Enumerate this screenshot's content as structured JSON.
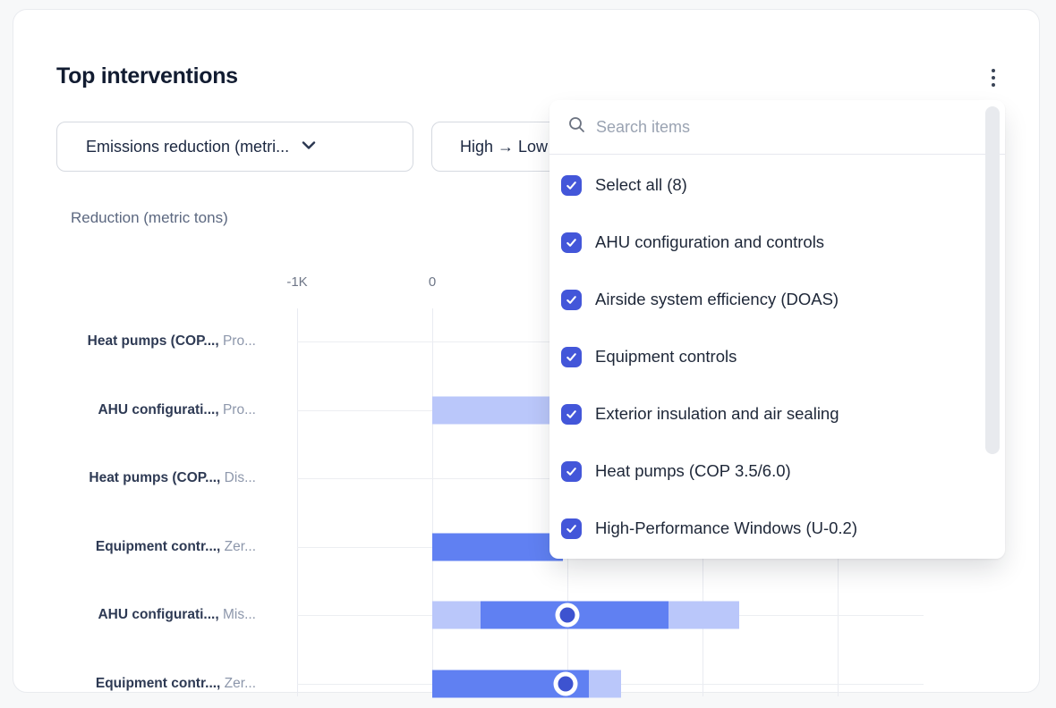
{
  "card": {
    "title": "Top interventions"
  },
  "menu": {
    "icon": "kebab-vertical-icon"
  },
  "filters": {
    "metric_select": {
      "value": "Emissions reduction (metri...",
      "icon": "chevron-down-icon"
    },
    "sort_select": {
      "value": "High → Low"
    }
  },
  "chart_data": {
    "type": "bar",
    "subtype": "horizontal range bars with median dot",
    "axis_title": "Reduction (metric tons)",
    "x_unit": "metric tons",
    "x_ticks_visible": [
      {
        "label": "-1K",
        "value": -1000
      },
      {
        "label": "0",
        "value": 0
      }
    ],
    "x_gridlines": [
      -1000,
      0,
      1000,
      2000,
      3000
    ],
    "legend": false,
    "colors": {
      "solid": "#6080f2",
      "light": "#bac7fa",
      "dot": "#3d53d0"
    },
    "rows": [
      {
        "label_bold": "Heat pumps (COP...,",
        "label_muted": "Pro...",
        "segments": [],
        "dot": null
      },
      {
        "label_bold": "AHU configurati...,",
        "label_muted": "Pro...",
        "segments": [
          {
            "style": "light",
            "from": 0,
            "to": 970,
            "truncated": true
          }
        ],
        "dot": null
      },
      {
        "label_bold": "Heat pumps (COP...,",
        "label_muted": "Dis...",
        "segments": [],
        "dot": null
      },
      {
        "label_bold": "Equipment contr...,",
        "label_muted": "Zer...",
        "segments": [
          {
            "style": "solid",
            "from": 0,
            "to": 970,
            "truncated": true
          }
        ],
        "dot": null
      },
      {
        "label_bold": "AHU configurati...,",
        "label_muted": "Mis...",
        "segments": [
          {
            "style": "light",
            "from": 0,
            "to": 360
          },
          {
            "style": "solid",
            "from": 360,
            "to": 1750
          },
          {
            "style": "light",
            "from": 1750,
            "to": 2270
          }
        ],
        "dot": 1000
      },
      {
        "label_bold": "Equipment contr...,",
        "label_muted": "Zer...",
        "segments": [
          {
            "style": "solid",
            "from": 0,
            "to": 1160
          },
          {
            "style": "light",
            "from": 1160,
            "to": 1400
          }
        ],
        "dot": 990
      }
    ]
  },
  "dropdown": {
    "search_placeholder": "Search items",
    "checkbox_color": "#4356d9",
    "items": [
      {
        "label": "Select all (8)",
        "checked": true
      },
      {
        "label": "AHU configuration and controls",
        "checked": true
      },
      {
        "label": "Airside system efficiency (DOAS)",
        "checked": true
      },
      {
        "label": "Equipment controls",
        "checked": true
      },
      {
        "label": "Exterior insulation and air sealing",
        "checked": true
      },
      {
        "label": "Heat pumps (COP 3.5/6.0)",
        "checked": true
      },
      {
        "label": "High-Performance Windows (U-0.2)",
        "checked": true
      }
    ]
  }
}
